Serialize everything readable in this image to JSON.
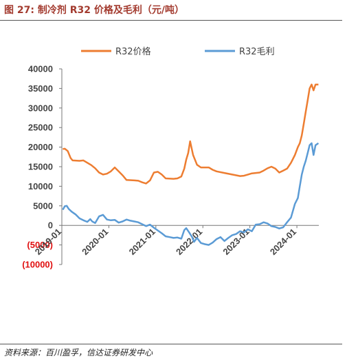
{
  "figure": {
    "title": "图 27:  制冷剂 R32 价格及毛利（元/吨）",
    "source": "资料来源：百川盈孚，信达证券研发中心"
  },
  "chart_data": {
    "type": "line",
    "title": "图 27:  制冷剂 R32 价格及毛利（元/吨）",
    "ylim": [
      -10000,
      40000
    ],
    "y_ticks": [
      40000,
      35000,
      30000,
      25000,
      20000,
      15000,
      10000,
      5000,
      0,
      -5000,
      -10000
    ],
    "y_tick_labels": [
      "40000",
      "35000",
      "30000",
      "25000",
      "20000",
      "15000",
      "10000",
      "5000",
      "0",
      "(5000)",
      "(10000)"
    ],
    "x_range": [
      "2019-01",
      "2024-06"
    ],
    "x_ticks": [
      "2019-01",
      "2020-01",
      "2021-01",
      "2022-01",
      "2023-01",
      "2024-01"
    ],
    "x_tick_labels": [
      "2019-01",
      "2020-01",
      "2021-01",
      "2022-01",
      "2023-01",
      "2024-01"
    ],
    "legend": "top",
    "grid": false,
    "colors": {
      "price": "#ed7d31",
      "margin": "#5b9bd5",
      "negative_label": "#e01010"
    },
    "series": [
      {
        "name": "R32价格",
        "color": "#ed7d31",
        "points": [
          [
            "2019-01",
            19500
          ],
          [
            "2019-01",
            19600
          ],
          [
            "2019-02",
            19000
          ],
          [
            "2019-03",
            17200
          ],
          [
            "2019-03",
            16600
          ],
          [
            "2019-05",
            16500
          ],
          [
            "2019-06",
            16600
          ],
          [
            "2019-07",
            16000
          ],
          [
            "2019-08",
            15400
          ],
          [
            "2019-09",
            14600
          ],
          [
            "2019-10",
            13500
          ],
          [
            "2019-11",
            13000
          ],
          [
            "2019-12",
            13200
          ],
          [
            "2020-01",
            13800
          ],
          [
            "2020-02",
            14800
          ],
          [
            "2020-03",
            13800
          ],
          [
            "2020-04",
            12800
          ],
          [
            "2020-05",
            11600
          ],
          [
            "2020-07",
            11500
          ],
          [
            "2020-08",
            11400
          ],
          [
            "2020-09",
            11000
          ],
          [
            "2020-10",
            10700
          ],
          [
            "2020-11",
            11500
          ],
          [
            "2020-12",
            13500
          ],
          [
            "2021-01",
            13700
          ],
          [
            "2021-02",
            13000
          ],
          [
            "2021-03",
            12000
          ],
          [
            "2021-05",
            11900
          ],
          [
            "2021-06",
            12000
          ],
          [
            "2021-07",
            12500
          ],
          [
            "2021-08",
            14500
          ],
          [
            "2021-08",
            16800
          ],
          [
            "2021-09",
            18500
          ],
          [
            "2021-09",
            21500
          ],
          [
            "2021-10",
            18000
          ],
          [
            "2021-11",
            15500
          ],
          [
            "2021-12",
            14800
          ],
          [
            "2022-02",
            14800
          ],
          [
            "2022-03",
            14200
          ],
          [
            "2022-04",
            13800
          ],
          [
            "2022-06",
            13400
          ],
          [
            "2022-08",
            13000
          ],
          [
            "2022-09",
            12800
          ],
          [
            "2022-10",
            12600
          ],
          [
            "2022-11",
            12700
          ],
          [
            "2022-12",
            13000
          ],
          [
            "2023-01",
            13300
          ],
          [
            "2023-03",
            13500
          ],
          [
            "2023-04",
            14000
          ],
          [
            "2023-05",
            14600
          ],
          [
            "2023-06",
            15000
          ],
          [
            "2023-07",
            14500
          ],
          [
            "2023-08",
            13500
          ],
          [
            "2023-09",
            14000
          ],
          [
            "2023-10",
            14500
          ],
          [
            "2023-11",
            16000
          ],
          [
            "2023-12",
            18000
          ],
          [
            "2024-01",
            20000
          ],
          [
            "2024-01",
            21000
          ],
          [
            "2024-02",
            23000
          ],
          [
            "2024-02",
            26000
          ],
          [
            "2024-03",
            29000
          ],
          [
            "2024-03",
            32000
          ],
          [
            "2024-04",
            35000
          ],
          [
            "2024-04",
            36000
          ],
          [
            "2024-05",
            34500
          ],
          [
            "2024-05",
            36000
          ],
          [
            "2024-06",
            36000
          ]
        ]
      },
      {
        "name": "R32毛利",
        "color": "#5b9bd5",
        "points": [
          [
            "2019-01",
            4000
          ],
          [
            "2019-01",
            4900
          ],
          [
            "2019-02",
            5000
          ],
          [
            "2019-02",
            4200
          ],
          [
            "2019-03",
            3500
          ],
          [
            "2019-04",
            2800
          ],
          [
            "2019-05",
            1800
          ],
          [
            "2019-06",
            1300
          ],
          [
            "2019-07",
            900
          ],
          [
            "2019-08",
            1600
          ],
          [
            "2019-08",
            1000
          ],
          [
            "2019-09",
            600
          ],
          [
            "2019-10",
            2300
          ],
          [
            "2019-11",
            2700
          ],
          [
            "2019-12",
            1500
          ],
          [
            "2020-01",
            1300
          ],
          [
            "2020-02",
            1400
          ],
          [
            "2020-03",
            700
          ],
          [
            "2020-04",
            1000
          ],
          [
            "2020-05",
            1500
          ],
          [
            "2020-06",
            1200
          ],
          [
            "2020-07",
            1000
          ],
          [
            "2020-08",
            800
          ],
          [
            "2020-09",
            300
          ],
          [
            "2020-10",
            -200
          ],
          [
            "2020-11",
            200
          ],
          [
            "2020-12",
            -600
          ],
          [
            "2021-01",
            -1300
          ],
          [
            "2021-02",
            -2000
          ],
          [
            "2021-03",
            -2800
          ],
          [
            "2021-04",
            -3000
          ],
          [
            "2021-05",
            -3200
          ],
          [
            "2021-06",
            -3100
          ],
          [
            "2021-07",
            -3400
          ],
          [
            "2021-08",
            -1200
          ],
          [
            "2021-08",
            -700
          ],
          [
            "2021-09",
            -1800
          ],
          [
            "2021-10",
            -3000
          ],
          [
            "2021-10",
            -4200
          ],
          [
            "2021-11",
            -3200
          ],
          [
            "2021-12",
            -4500
          ],
          [
            "2022-01",
            -4800
          ],
          [
            "2022-02",
            -5000
          ],
          [
            "2022-03",
            -4400
          ],
          [
            "2022-04",
            -3500
          ],
          [
            "2022-05",
            -3000
          ],
          [
            "2022-06",
            -4000
          ],
          [
            "2022-07",
            -3200
          ],
          [
            "2022-08",
            -2500
          ],
          [
            "2022-09",
            -2200
          ],
          [
            "2022-10",
            -1500
          ],
          [
            "2022-11",
            -1800
          ],
          [
            "2022-12",
            -1000
          ],
          [
            "2023-01",
            -1500
          ],
          [
            "2023-02",
            200
          ],
          [
            "2023-03",
            300
          ],
          [
            "2023-04",
            800
          ],
          [
            "2023-05",
            500
          ],
          [
            "2023-06",
            -200
          ],
          [
            "2023-07",
            -400
          ],
          [
            "2023-08",
            -800
          ],
          [
            "2023-09",
            -500
          ],
          [
            "2023-10",
            800
          ],
          [
            "2023-11",
            2000
          ],
          [
            "2023-12",
            5500
          ],
          [
            "2024-01",
            7000
          ],
          [
            "2024-01",
            10000
          ],
          [
            "2024-02",
            13000
          ],
          [
            "2024-02",
            15000
          ],
          [
            "2024-03",
            16500
          ],
          [
            "2024-03",
            18500
          ],
          [
            "2024-04",
            20500
          ],
          [
            "2024-04",
            21000
          ],
          [
            "2024-05",
            18000
          ],
          [
            "2024-05",
            20500
          ],
          [
            "2024-06",
            21000
          ]
        ]
      }
    ]
  }
}
